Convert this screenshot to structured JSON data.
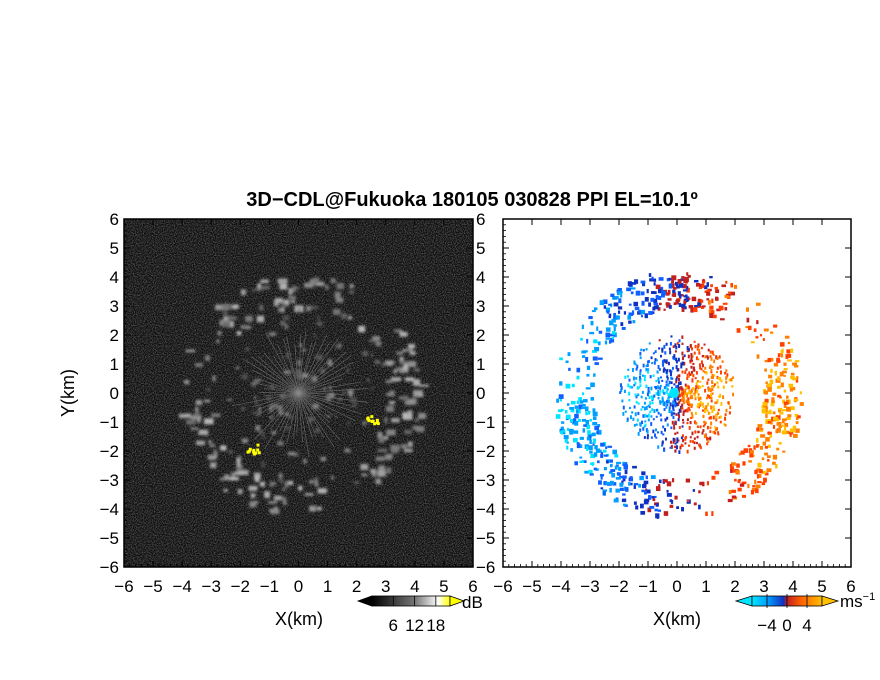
{
  "title": "3D−CDL@Fukuoka 180105 030828 PPI EL=10.1º",
  "chart_data": [
    {
      "type": "heatmap",
      "panel": "left",
      "field": "reflectivity",
      "xlabel": "X(km)",
      "ylabel": "Y(km)",
      "xlim": [
        -6,
        6
      ],
      "ylim": [
        -6,
        6
      ],
      "xticks": [
        "−6",
        "−5",
        "−4",
        "−3",
        "−2",
        "−1",
        "0",
        "1",
        "2",
        "3",
        "4",
        "5",
        "6"
      ],
      "yticks": [
        "−6",
        "−5",
        "−4",
        "−3",
        "−2",
        "−1",
        "0",
        "1",
        "2",
        "3",
        "4",
        "5",
        "6"
      ],
      "colorbar": {
        "unit": "dB",
        "ticks": [
          "6",
          "12",
          "18"
        ],
        "tick_values": [
          6,
          12,
          18
        ],
        "range": [
          0,
          22
        ],
        "colors": [
          "#000000",
          "#222222",
          "#444444",
          "#666666",
          "#888888",
          "#aaaaaa",
          "#cccccc",
          "#eeeeee",
          "#ffffff",
          "#ffff00"
        ]
      },
      "echo_features": [
        {
          "kind": "ring",
          "r_km": 3.6,
          "width_km": 0.55,
          "value_db": 10
        },
        {
          "kind": "spokes",
          "r_km": 2.0,
          "count": 60,
          "value_db": 9
        },
        {
          "kind": "patch",
          "x": -1.6,
          "y": -1.9,
          "value_db": 19
        },
        {
          "kind": "patch",
          "x": 2.5,
          "y": -0.9,
          "value_db": 19
        }
      ]
    },
    {
      "type": "heatmap",
      "panel": "right",
      "field": "doppler_velocity",
      "xlabel": "X(km)",
      "ylabel": "",
      "xlim": [
        -6,
        6
      ],
      "ylim": [
        -6,
        6
      ],
      "xticks": [
        "−6",
        "−5",
        "−4",
        "−3",
        "−2",
        "−1",
        "0",
        "1",
        "2",
        "3",
        "4",
        "5",
        "6"
      ],
      "yticks": [
        "−6",
        "−5",
        "−4",
        "−3",
        "−2",
        "−1",
        "0",
        "1",
        "2",
        "3",
        "4",
        "5",
        "6"
      ],
      "colorbar": {
        "unit": "ms",
        "unit_exponent": "−1",
        "ticks": [
          "−4",
          "0",
          "4"
        ],
        "tick_values": [
          -4,
          0,
          4
        ],
        "range": [
          -7,
          7
        ],
        "colors": [
          "#00e5ff",
          "#00a0ff",
          "#1060ff",
          "#1030c0",
          "#c02020",
          "#ff4000",
          "#ff8000",
          "#ffc000"
        ]
      },
      "echo_features": [
        {
          "kind": "ring",
          "r_km": 3.6,
          "width_km": 0.55
        },
        {
          "kind": "spokes",
          "r_km": 2.0,
          "count": 60
        },
        {
          "kind": "patch",
          "x": -0.1,
          "y": 0.0,
          "value": -6
        }
      ],
      "sign_pattern": "west half mostly negative (blue), east half mostly positive (orange)"
    }
  ]
}
